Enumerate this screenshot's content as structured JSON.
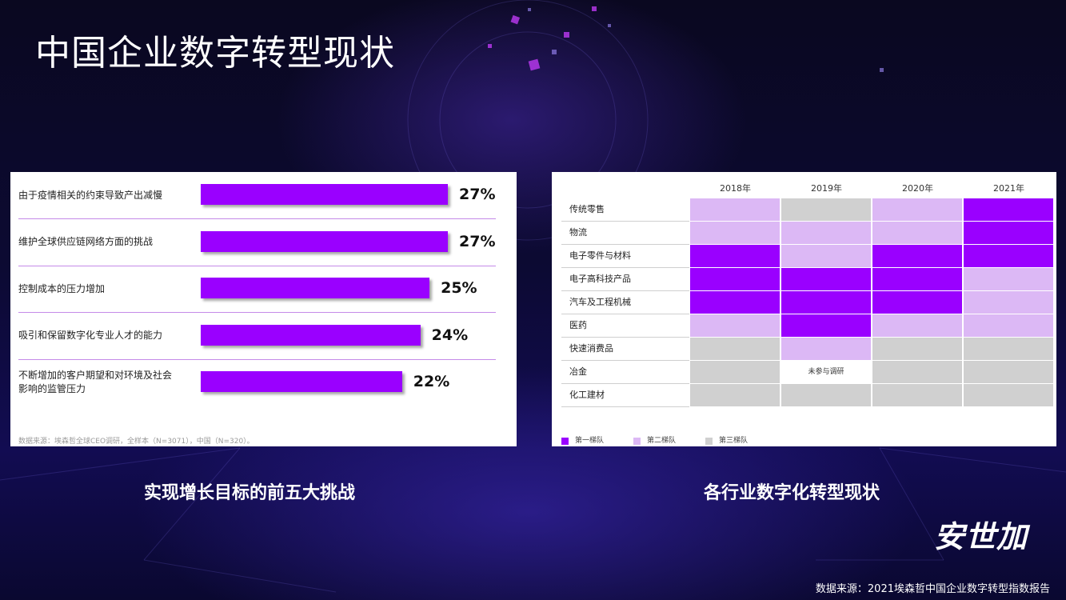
{
  "page_title": "中国企业数字转型现状",
  "brand": "安世加",
  "source": "数据来源：2021埃森哲中国企业数字转型指数报告",
  "left_panel": {
    "caption": "实现增长目标的前五大挑战",
    "footnote": "数据来源：埃森哲全球CEO调研，全样本（N=3071），中国（N=320）。"
  },
  "right_panel": {
    "caption": "各行业数字化转型现状",
    "note": "未参与调研",
    "legend": [
      {
        "label": "第一梯队",
        "color": "#9a00ff"
      },
      {
        "label": "第二梯队",
        "color": "#dcb8f5"
      },
      {
        "label": "第三梯队",
        "color": "#d0d0d0"
      }
    ]
  },
  "chart_data": [
    {
      "type": "bar",
      "orientation": "horizontal",
      "title": "实现增长目标的前五大挑战",
      "categories": [
        "由于疫情相关的约束导致产出减慢",
        "维护全球供应链网络方面的挑战",
        "控制成本的压力增加",
        "吸引和保留数字化专业人才的能力",
        "不断增加的客户期望和对环境及社会影响的监管压力"
      ],
      "values": [
        27,
        27,
        25,
        24,
        22
      ],
      "value_labels": [
        "27%",
        "27%",
        "25%",
        "24%",
        "22%"
      ],
      "xlim": [
        0,
        30
      ],
      "color": "#9a00ff"
    },
    {
      "type": "heatmap",
      "title": "各行业数字化转型现状",
      "x": [
        "2018年",
        "2019年",
        "2020年",
        "2021年"
      ],
      "y": [
        "传统零售",
        "物流",
        "电子零件与材料",
        "电子高科技产品",
        "汽车及工程机械",
        "医药",
        "快速消费品",
        "冶金",
        "化工建材"
      ],
      "values": [
        [
          2,
          3,
          2,
          1
        ],
        [
          2,
          2,
          2,
          1
        ],
        [
          1,
          2,
          1,
          1
        ],
        [
          1,
          1,
          1,
          2
        ],
        [
          1,
          1,
          1,
          2
        ],
        [
          2,
          1,
          2,
          2
        ],
        [
          3,
          2,
          3,
          3
        ],
        [
          3,
          0,
          3,
          3
        ],
        [
          3,
          3,
          3,
          3
        ]
      ],
      "value_meaning": {
        "1": "第一梯队",
        "2": "第二梯队",
        "3": "第三梯队",
        "0": "未参与调研"
      },
      "colors": {
        "1": "#9a00ff",
        "2": "#dcb8f5",
        "3": "#d0d0d0",
        "0": "#ffffff"
      }
    }
  ]
}
